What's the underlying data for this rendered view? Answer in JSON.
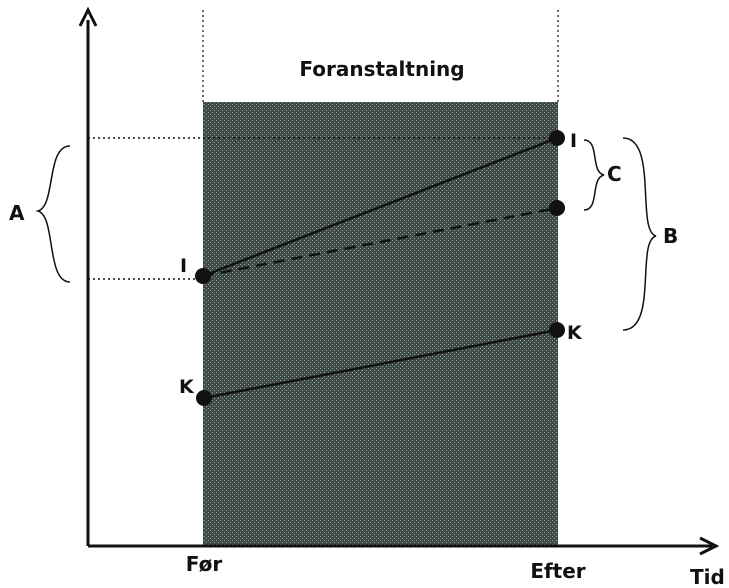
{
  "diagram": {
    "title": "Foranstaltning",
    "x_axis": {
      "label": "Tid",
      "ticks": [
        "Før",
        "Efter"
      ]
    },
    "points": {
      "intervention_before": "I",
      "intervention_after": "I",
      "control_before": "K",
      "control_after": "K"
    },
    "braces": {
      "a": "A",
      "b": "B",
      "c": "C"
    },
    "colors": {
      "shaded_region": "#3e4a45",
      "shaded_dots": "#9aa39f",
      "lines": "#111111"
    }
  }
}
